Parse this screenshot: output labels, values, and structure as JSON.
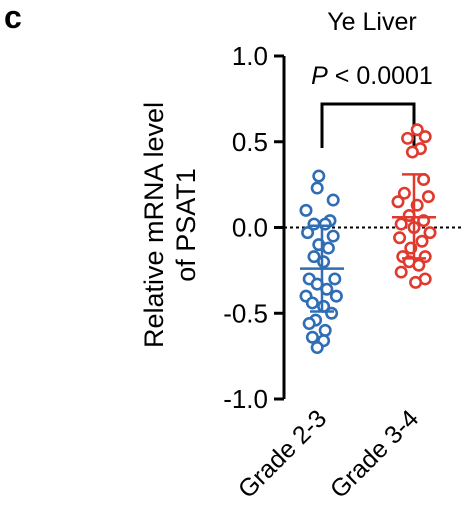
{
  "panel_label": "c",
  "chart_data": {
    "type": "scatter",
    "title": "Ye Liver",
    "ylabel_line1": "Relative mRNA level",
    "ylabel_line2": "of PSAT1",
    "ylim": [
      -1.0,
      1.0
    ],
    "yticks": [
      1.0,
      0.5,
      0.0,
      -0.5,
      -1.0
    ],
    "ytick_labels": [
      "1.0",
      "0.5",
      "0.0",
      "-0.5",
      "-1.0"
    ],
    "reference_line_y": 0.0,
    "categories": [
      "Grade 2-3",
      "Grade 3-4"
    ],
    "significance": {
      "p_italic": "P",
      "p_rest": " < 0.0001"
    },
    "series": [
      {
        "color": "#2f6db5",
        "mean": -0.24,
        "sd_upper": 0.01,
        "sd_lower": -0.49,
        "points": [
          {
            "dx": -0.04,
            "y": 0.3
          },
          {
            "dx": -0.06,
            "y": 0.23
          },
          {
            "dx": 0.14,
            "y": 0.16
          },
          {
            "dx": -0.2,
            "y": 0.1
          },
          {
            "dx": 0.1,
            "y": 0.04
          },
          {
            "dx": -0.1,
            "y": 0.02
          },
          {
            "dx": 0.04,
            "y": 0.02
          },
          {
            "dx": -0.18,
            "y": -0.03
          },
          {
            "dx": 0.14,
            "y": -0.05
          },
          {
            "dx": -0.04,
            "y": -0.1
          },
          {
            "dx": 0.08,
            "y": -0.12
          },
          {
            "dx": -0.1,
            "y": -0.17
          },
          {
            "dx": 0.02,
            "y": -0.2
          },
          {
            "dx": -0.16,
            "y": -0.3
          },
          {
            "dx": 0.16,
            "y": -0.3
          },
          {
            "dx": -0.06,
            "y": -0.33
          },
          {
            "dx": 0.06,
            "y": -0.36
          },
          {
            "dx": -0.2,
            "y": -0.4
          },
          {
            "dx": 0.18,
            "y": -0.4
          },
          {
            "dx": -0.12,
            "y": -0.44
          },
          {
            "dx": 0.02,
            "y": -0.46
          },
          {
            "dx": 0.12,
            "y": -0.5
          },
          {
            "dx": -0.08,
            "y": -0.54
          },
          {
            "dx": -0.16,
            "y": -0.56
          },
          {
            "dx": 0.04,
            "y": -0.6
          },
          {
            "dx": -0.12,
            "y": -0.64
          },
          {
            "dx": 0.02,
            "y": -0.66
          },
          {
            "dx": -0.06,
            "y": -0.7
          }
        ]
      },
      {
        "color": "#e03a2e",
        "mean": 0.06,
        "sd_upper": 0.31,
        "sd_lower": -0.18,
        "points": [
          {
            "dx": 0.04,
            "y": 0.57
          },
          {
            "dx": 0.14,
            "y": 0.53
          },
          {
            "dx": -0.08,
            "y": 0.52
          },
          {
            "dx": 0.08,
            "y": 0.46
          },
          {
            "dx": -0.02,
            "y": 0.44
          },
          {
            "dx": 0.12,
            "y": 0.28
          },
          {
            "dx": -0.12,
            "y": 0.2
          },
          {
            "dx": 0.18,
            "y": 0.18
          },
          {
            "dx": -0.2,
            "y": 0.15
          },
          {
            "dx": 0.04,
            "y": 0.13
          },
          {
            "dx": -0.06,
            "y": 0.07
          },
          {
            "dx": 0.12,
            "y": 0.04
          },
          {
            "dx": -0.16,
            "y": 0.02
          },
          {
            "dx": 0.0,
            "y": 0.0
          },
          {
            "dx": 0.2,
            "y": -0.03
          },
          {
            "dx": -0.18,
            "y": -0.06
          },
          {
            "dx": 0.1,
            "y": -0.08
          },
          {
            "dx": -0.04,
            "y": -0.12
          },
          {
            "dx": -0.14,
            "y": -0.17
          },
          {
            "dx": 0.14,
            "y": -0.17
          },
          {
            "dx": -0.06,
            "y": -0.2
          },
          {
            "dx": 0.06,
            "y": -0.22
          },
          {
            "dx": -0.16,
            "y": -0.26
          },
          {
            "dx": 0.14,
            "y": -0.3
          },
          {
            "dx": 0.02,
            "y": -0.32
          }
        ]
      }
    ]
  }
}
